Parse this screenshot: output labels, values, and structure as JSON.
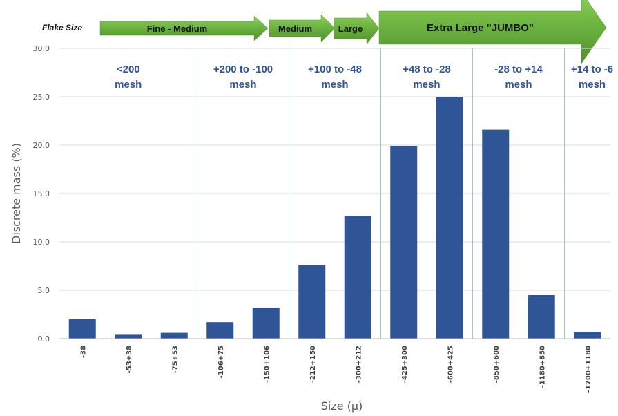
{
  "chart_data": {
    "type": "bar",
    "ylabel": "Discrete mass (%)",
    "xlabel": "Size (µ)",
    "ylim": [
      0,
      30
    ],
    "yticks": [
      "0.0",
      "5.0",
      "10.0",
      "15.0",
      "20.0",
      "25.0",
      "30.0"
    ],
    "grid": true,
    "bar_color": "#2f5597",
    "categories": [
      "-38",
      "-53+38",
      "-75+53",
      "-106+75",
      "-150+106",
      "-212+150",
      "-300+212",
      "-425+300",
      "-600+425",
      "-850+600",
      "-1180+850",
      "-1700+1180"
    ],
    "values": [
      2.0,
      0.4,
      0.6,
      1.7,
      3.2,
      7.6,
      12.7,
      19.9,
      25.0,
      21.6,
      4.5,
      0.7
    ],
    "mesh_bands": [
      {
        "line1": "<200",
        "line2": "mesh"
      },
      {
        "line1": "+200 to -100",
        "line2": "mesh"
      },
      {
        "line1": "+100 to -48",
        "line2": "mesh"
      },
      {
        "line1": "+48 to -28",
        "line2": "mesh"
      },
      {
        "line1": "-28 to +14",
        "line2": "mesh"
      },
      {
        "line1": "+14 to -6",
        "line2": "mesh"
      }
    ],
    "flake_size_label": "Flake Size",
    "flake_categories": [
      "Fine - Medium",
      "Medium",
      "Large",
      "Extra Large \"JUMBO\""
    ],
    "arrow_color": "#70ad47",
    "band_color": "#2f5597",
    "separator_color": "#9dc3e6"
  }
}
